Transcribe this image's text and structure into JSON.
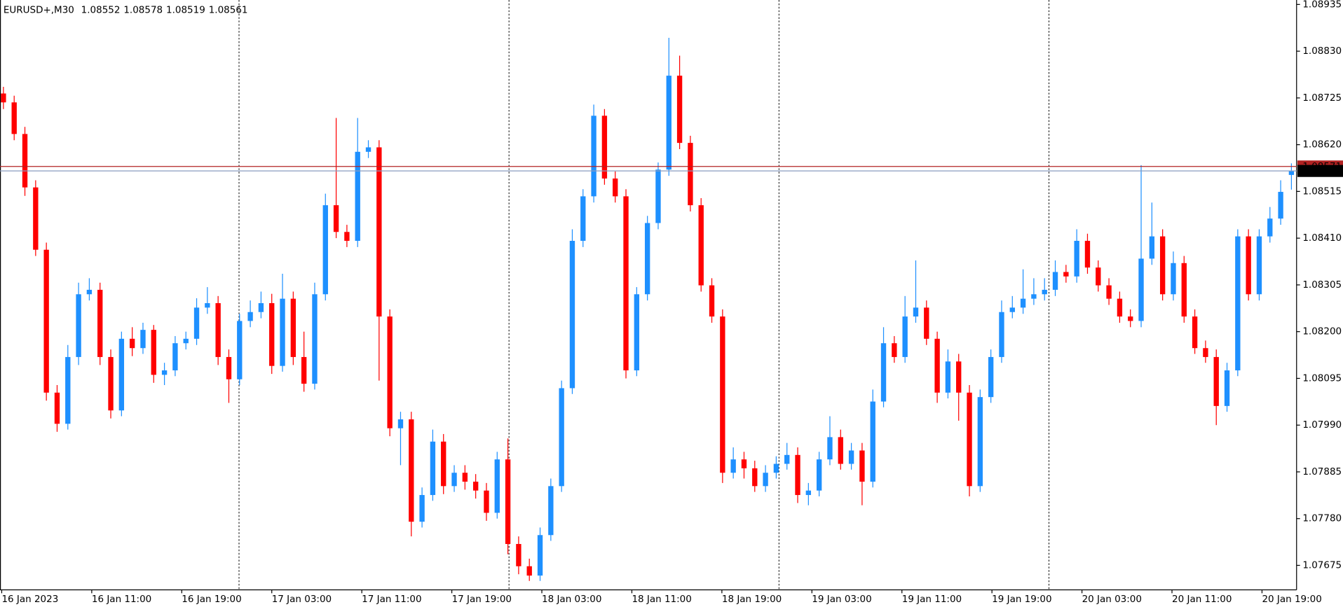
{
  "chart_data": {
    "type": "candlestick",
    "title": "EURUSD+,M30",
    "up_color": "#1e90ff",
    "down_color": "#ff0000",
    "ask": 1.08571,
    "ask_color": "#b22222",
    "bid_color": "#8a9bbf",
    "ylim": [
      1.0762,
      1.08945
    ],
    "yticks": [
      1.08935,
      {
        "value": 1.0883,
        "label": "1.08830"
      },
      1.08725,
      {
        "value": 1.0862,
        "label": "1.08620"
      },
      1.08515,
      {
        "value": 1.0841,
        "label": "1.08410"
      },
      1.08305,
      {
        "value": 1.082,
        "label": "1.08200"
      },
      1.08095,
      {
        "value": 1.0799,
        "label": "1.07990"
      },
      1.07885,
      {
        "value": 1.0778,
        "label": "1.07780"
      },
      1.07675
    ],
    "time_labels": [
      "16 Jan 2023",
      "16 Jan 11:00",
      "16 Jan 19:00",
      "17 Jan 03:00",
      "17 Jan 11:00",
      "17 Jan 19:00",
      "18 Jan 03:00",
      "18 Jan 11:00",
      "18 Jan 19:00",
      "19 Jan 03:00",
      "19 Jan 11:00",
      "19 Jan 19:00",
      "20 Jan 03:00",
      "20 Jan 11:00",
      "20 Jan 19:00"
    ],
    "open": [
      1.08735,
      1.08715,
      1.08644,
      1.08524,
      1.08384,
      1.08063,
      1.07993,
      1.08143,
      1.08284,
      1.08294,
      1.08143,
      1.08023,
      1.08184,
      1.08163,
      1.08204,
      1.08103,
      1.08113,
      1.08174,
      1.08184,
      1.08254,
      1.08264,
      1.08143,
      1.08093,
      1.08224,
      1.08244,
      1.08264,
      1.08123,
      1.08274,
      1.08143,
      1.08083,
      1.08284,
      1.08484,
      1.08424,
      1.08404,
      1.08604,
      1.08614,
      1.08234,
      1.07983,
      1.08003,
      1.07773,
      1.07833,
      1.07953,
      1.07853,
      1.07883,
      1.07863,
      1.07843,
      1.07793,
      1.07913,
      1.07723,
      1.07673,
      1.07652,
      1.07743,
      1.07853,
      1.08073,
      1.08404,
      1.08504,
      1.08685,
      1.08544,
      1.08504,
      1.08113,
      1.08284,
      1.08444,
      1.08564,
      1.08775,
      1.08624,
      1.08484,
      1.08304,
      1.08234,
      1.07883,
      1.07913,
      1.07893,
      1.07853,
      1.07883,
      1.07903,
      1.07923,
      1.07833,
      1.07843,
      1.07913,
      1.07963,
      1.07903,
      1.07933,
      1.07863,
      1.08043,
      1.08174,
      1.08143,
      1.08234,
      1.08254,
      1.08184,
      1.08063,
      1.08133,
      1.08063,
      1.07853,
      1.08053,
      1.08143,
      1.08244,
      1.08254,
      1.08274,
      1.08284,
      1.08294,
      1.08334,
      1.08324,
      1.08404,
      1.08344,
      1.08304,
      1.08274,
      1.08234,
      1.08224,
      1.08364,
      1.08414,
      1.08284,
      1.08354,
      1.08234,
      1.08163,
      1.08143,
      1.08033,
      1.08113,
      1.08414,
      1.08284,
      1.08414,
      1.08454,
      1.08552
    ],
    "high": [
      1.0875,
      1.0873,
      1.0866,
      1.0854,
      1.084,
      1.0808,
      1.0817,
      1.0831,
      1.0832,
      1.0831,
      1.0816,
      1.082,
      1.0821,
      1.0822,
      1.08215,
      1.0813,
      1.0819,
      1.082,
      1.08275,
      1.083,
      1.0828,
      1.0816,
      1.0824,
      1.0827,
      1.0829,
      1.08285,
      1.0833,
      1.0829,
      1.082,
      1.0831,
      1.0851,
      1.0868,
      1.0844,
      1.0868,
      1.0863,
      1.0863,
      1.0825,
      1.0802,
      1.0802,
      1.0785,
      1.0798,
      1.0797,
      1.079,
      1.079,
      1.0788,
      1.0786,
      1.0793,
      1.0796,
      1.0774,
      1.0769,
      1.0776,
      1.0787,
      1.0809,
      1.0843,
      1.0852,
      1.0871,
      1.087,
      1.0856,
      1.0852,
      1.083,
      1.0846,
      1.0858,
      1.0886,
      1.0882,
      1.0864,
      1.085,
      1.0832,
      1.0825,
      1.0794,
      1.0793,
      1.0791,
      1.079,
      1.0792,
      1.0795,
      1.0794,
      1.0786,
      1.0793,
      1.0801,
      1.0798,
      1.0795,
      1.0795,
      1.0807,
      1.0821,
      1.0819,
      1.0828,
      1.0836,
      1.0827,
      1.082,
      1.0816,
      1.0815,
      1.0808,
      1.0807,
      1.0816,
      1.0827,
      1.0828,
      1.0834,
      1.0832,
      1.0832,
      1.0836,
      1.0835,
      1.0843,
      1.0842,
      1.0836,
      1.0832,
      1.0829,
      1.0825,
      1.08574,
      1.0849,
      1.0843,
      1.0838,
      1.0837,
      1.0825,
      1.0818,
      1.0816,
      1.0813,
      1.0843,
      1.0843,
      1.0843,
      1.0848,
      1.0854,
      1.08578
    ],
    "low": [
      1.087,
      1.0863,
      1.08505,
      1.0837,
      1.08045,
      1.07975,
      1.0798,
      1.08125,
      1.0827,
      1.08125,
      1.08005,
      1.0801,
      1.08145,
      1.0815,
      1.08085,
      1.0808,
      1.081,
      1.0816,
      1.0817,
      1.0824,
      1.08125,
      1.0804,
      1.0808,
      1.0821,
      1.0823,
      1.08105,
      1.0811,
      1.08125,
      1.08065,
      1.0807,
      1.0827,
      1.0841,
      1.0839,
      1.0839,
      1.0859,
      1.0809,
      1.07965,
      1.079,
      1.0774,
      1.0776,
      1.0782,
      1.07835,
      1.0784,
      1.07845,
      1.07825,
      1.07775,
      1.0778,
      1.077,
      1.07655,
      1.0764,
      1.0764,
      1.0773,
      1.0784,
      1.0806,
      1.0839,
      1.0849,
      1.0853,
      1.0849,
      1.08095,
      1.081,
      1.0827,
      1.0843,
      1.0855,
      1.0861,
      1.0847,
      1.0829,
      1.0822,
      1.0786,
      1.0787,
      1.0787,
      1.0784,
      1.0784,
      1.0787,
      1.0789,
      1.07815,
      1.0781,
      1.0783,
      1.079,
      1.0789,
      1.0789,
      1.0781,
      1.0785,
      1.0803,
      1.0813,
      1.0813,
      1.0822,
      1.0817,
      1.0804,
      1.0805,
      1.08,
      1.0783,
      1.0784,
      1.0804,
      1.0813,
      1.0823,
      1.0824,
      1.0826,
      1.0827,
      1.0828,
      1.0831,
      1.0831,
      1.0833,
      1.0829,
      1.0826,
      1.0822,
      1.0821,
      1.0821,
      1.0835,
      1.0827,
      1.0827,
      1.0822,
      1.0815,
      1.0813,
      1.0799,
      1.0802,
      1.081,
      1.0827,
      1.0827,
      1.084,
      1.0844,
      1.08519
    ],
    "close": [
      1.08715,
      1.08644,
      1.08524,
      1.08384,
      1.08063,
      1.07993,
      1.08143,
      1.08284,
      1.08294,
      1.08143,
      1.08023,
      1.08184,
      1.08163,
      1.08204,
      1.08103,
      1.08113,
      1.08174,
      1.08184,
      1.08254,
      1.08264,
      1.08143,
      1.08093,
      1.08224,
      1.08244,
      1.08264,
      1.08123,
      1.08274,
      1.08143,
      1.08083,
      1.08284,
      1.08484,
      1.08424,
      1.08404,
      1.08604,
      1.08614,
      1.08234,
      1.07983,
      1.08003,
      1.07773,
      1.07833,
      1.07953,
      1.07853,
      1.07883,
      1.07863,
      1.07843,
      1.07793,
      1.07913,
      1.07723,
      1.07673,
      1.07652,
      1.07743,
      1.07853,
      1.08073,
      1.08404,
      1.08504,
      1.08685,
      1.08544,
      1.08504,
      1.08113,
      1.08284,
      1.08444,
      1.08564,
      1.08775,
      1.08624,
      1.08484,
      1.08304,
      1.08234,
      1.07883,
      1.07913,
      1.07893,
      1.07853,
      1.07883,
      1.07903,
      1.07923,
      1.07833,
      1.07843,
      1.07913,
      1.07963,
      1.07903,
      1.07933,
      1.07863,
      1.08043,
      1.08174,
      1.08143,
      1.08234,
      1.08254,
      1.08184,
      1.08063,
      1.08133,
      1.08063,
      1.07853,
      1.08053,
      1.08143,
      1.08244,
      1.08254,
      1.08274,
      1.08284,
      1.08294,
      1.08334,
      1.08324,
      1.08404,
      1.08344,
      1.08304,
      1.08274,
      1.08234,
      1.08224,
      1.08364,
      1.08414,
      1.08284,
      1.08354,
      1.08234,
      1.08163,
      1.08143,
      1.08033,
      1.08113,
      1.08414,
      1.08284,
      1.08414,
      1.08454,
      1.08514,
      1.08561
    ]
  }
}
